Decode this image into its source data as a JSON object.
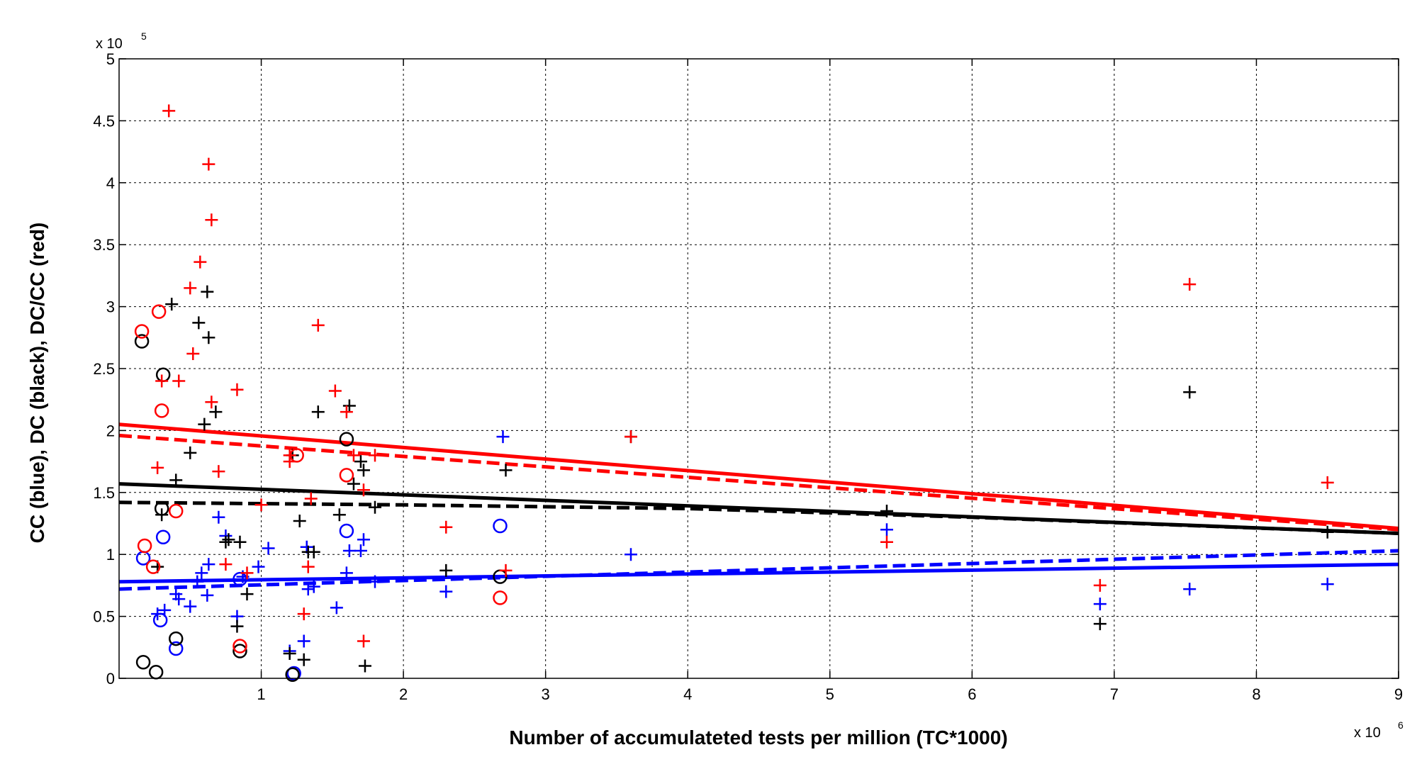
{
  "chart_data": {
    "type": "scatter",
    "xlabel": "Number of accumulateted tests per million (TC*1000)",
    "ylabel": "CC (blue), DC (black), DC/CC (red)",
    "x_multiplier": {
      "base": "x 10",
      "exp": "6"
    },
    "y_multiplier": {
      "base": "x 10",
      "exp": "5"
    },
    "xlim": [
      0,
      9
    ],
    "ylim": [
      0,
      5
    ],
    "x_ticks": [
      "1",
      "2",
      "3",
      "4",
      "5",
      "6",
      "7",
      "8",
      "9"
    ],
    "y_ticks": [
      "0",
      "0.5",
      "1",
      "1.5",
      "2",
      "2.5",
      "3",
      "3.5",
      "4",
      "4.5",
      "5"
    ],
    "grid": true,
    "colors": {
      "blue": "#0000ff",
      "black": "#000000",
      "red": "#ff0000"
    },
    "series": [
      {
        "color": "blue",
        "marker": "plus",
        "points": [
          [
            0.27,
            0.52
          ],
          [
            0.32,
            0.55
          ],
          [
            0.4,
            0.68
          ],
          [
            0.42,
            0.64
          ],
          [
            0.5,
            0.58
          ],
          [
            0.55,
            0.78
          ],
          [
            0.58,
            0.85
          ],
          [
            0.62,
            0.67
          ],
          [
            0.63,
            0.92
          ],
          [
            0.7,
            1.3
          ],
          [
            0.75,
            1.15
          ],
          [
            0.83,
            0.5
          ],
          [
            0.87,
            0.82
          ],
          [
            0.98,
            0.9
          ],
          [
            1.05,
            1.05
          ],
          [
            1.2,
            0.22
          ],
          [
            1.3,
            0.3
          ],
          [
            1.32,
            1.06
          ],
          [
            1.33,
            0.72
          ],
          [
            1.37,
            0.74
          ],
          [
            1.53,
            0.57
          ],
          [
            1.6,
            0.85
          ],
          [
            1.62,
            1.03
          ],
          [
            1.7,
            1.03
          ],
          [
            1.72,
            1.12
          ],
          [
            1.8,
            0.78
          ],
          [
            2.3,
            0.7
          ],
          [
            2.7,
            1.95
          ],
          [
            3.6,
            1.0
          ],
          [
            5.4,
            1.2
          ],
          [
            6.9,
            0.6
          ],
          [
            7.53,
            0.72
          ],
          [
            8.5,
            0.76
          ]
        ]
      },
      {
        "color": "blue",
        "marker": "circle",
        "points": [
          [
            0.17,
            0.97
          ],
          [
            0.29,
            0.47
          ],
          [
            0.31,
            1.14
          ],
          [
            0.4,
            0.24
          ],
          [
            0.85,
            0.8
          ],
          [
            1.23,
            0.04
          ],
          [
            1.6,
            1.19
          ],
          [
            2.68,
            1.23
          ]
        ]
      },
      {
        "color": "black",
        "marker": "plus",
        "points": [
          [
            0.27,
            0.9
          ],
          [
            0.3,
            1.32
          ],
          [
            0.37,
            3.02
          ],
          [
            0.4,
            1.6
          ],
          [
            0.5,
            1.82
          ],
          [
            0.56,
            2.87
          ],
          [
            0.6,
            2.05
          ],
          [
            0.62,
            3.12
          ],
          [
            0.63,
            2.75
          ],
          [
            0.68,
            2.15
          ],
          [
            0.75,
            1.1
          ],
          [
            0.77,
            1.12
          ],
          [
            0.83,
            0.42
          ],
          [
            0.85,
            1.1
          ],
          [
            0.9,
            0.68
          ],
          [
            1.2,
            0.2
          ],
          [
            1.22,
            1.8
          ],
          [
            1.27,
            1.27
          ],
          [
            1.3,
            0.15
          ],
          [
            1.33,
            1.02
          ],
          [
            1.37,
            1.02
          ],
          [
            1.4,
            2.15
          ],
          [
            1.55,
            1.32
          ],
          [
            1.62,
            2.2
          ],
          [
            1.65,
            1.57
          ],
          [
            1.7,
            1.75
          ],
          [
            1.72,
            1.68
          ],
          [
            1.73,
            0.1
          ],
          [
            1.8,
            1.38
          ],
          [
            2.3,
            0.87
          ],
          [
            2.72,
            1.68
          ],
          [
            3.6,
            1.95
          ],
          [
            5.4,
            1.35
          ],
          [
            6.9,
            0.44
          ],
          [
            7.53,
            2.31
          ],
          [
            8.5,
            1.18
          ]
        ]
      },
      {
        "color": "black",
        "marker": "circle",
        "points": [
          [
            0.16,
            2.72
          ],
          [
            0.17,
            0.13
          ],
          [
            0.26,
            0.05
          ],
          [
            0.3,
            1.37
          ],
          [
            0.31,
            2.45
          ],
          [
            0.4,
            0.32
          ],
          [
            0.85,
            0.22
          ],
          [
            1.22,
            0.03
          ],
          [
            1.6,
            1.93
          ],
          [
            2.68,
            0.82
          ]
        ]
      },
      {
        "color": "red",
        "marker": "plus",
        "points": [
          [
            0.27,
            1.7
          ],
          [
            0.3,
            2.4
          ],
          [
            0.35,
            4.58
          ],
          [
            0.42,
            2.4
          ],
          [
            0.5,
            3.15
          ],
          [
            0.52,
            2.62
          ],
          [
            0.57,
            3.36
          ],
          [
            0.63,
            4.15
          ],
          [
            0.65,
            2.23
          ],
          [
            0.65,
            3.7
          ],
          [
            0.7,
            1.67
          ],
          [
            0.75,
            0.92
          ],
          [
            0.83,
            2.33
          ],
          [
            0.9,
            0.85
          ],
          [
            1.0,
            1.4
          ],
          [
            1.2,
            1.8
          ],
          [
            1.2,
            1.75
          ],
          [
            1.3,
            0.52
          ],
          [
            1.33,
            0.9
          ],
          [
            1.35,
            1.45
          ],
          [
            1.4,
            2.85
          ],
          [
            1.52,
            2.32
          ],
          [
            1.6,
            2.15
          ],
          [
            1.65,
            1.8
          ],
          [
            1.72,
            0.3
          ],
          [
            1.72,
            1.52
          ],
          [
            1.8,
            1.8
          ],
          [
            2.3,
            1.22
          ],
          [
            2.72,
            0.87
          ],
          [
            3.6,
            1.95
          ],
          [
            5.4,
            1.1
          ],
          [
            6.9,
            0.75
          ],
          [
            7.53,
            3.18
          ],
          [
            8.5,
            1.58
          ]
        ]
      },
      {
        "color": "red",
        "marker": "circle",
        "points": [
          [
            0.16,
            2.8
          ],
          [
            0.18,
            1.07
          ],
          [
            0.24,
            0.9
          ],
          [
            0.28,
            2.96
          ],
          [
            0.3,
            2.16
          ],
          [
            0.4,
            1.35
          ],
          [
            0.85,
            0.26
          ],
          [
            1.25,
            1.8
          ],
          [
            1.6,
            1.64
          ],
          [
            2.68,
            0.65
          ]
        ]
      }
    ],
    "fit_lines": [
      {
        "color": "blue",
        "style": "solid",
        "points": [
          [
            0,
            0.78
          ],
          [
            9,
            0.92
          ]
        ]
      },
      {
        "color": "blue",
        "style": "dashed",
        "points": [
          [
            0,
            0.72
          ],
          [
            9,
            1.03
          ]
        ]
      },
      {
        "color": "black",
        "style": "solid",
        "points": [
          [
            0,
            1.57
          ],
          [
            9,
            1.17
          ]
        ]
      },
      {
        "color": "black",
        "style": "dashed",
        "points": [
          [
            0,
            1.42
          ],
          [
            2,
            1.4
          ],
          [
            4,
            1.37
          ],
          [
            6,
            1.3
          ],
          [
            9,
            1.17
          ]
        ]
      },
      {
        "color": "red",
        "style": "solid",
        "points": [
          [
            0,
            2.05
          ],
          [
            9,
            1.21
          ]
        ]
      },
      {
        "color": "red",
        "style": "dashed",
        "points": [
          [
            0,
            1.96
          ],
          [
            9,
            1.2
          ]
        ]
      }
    ]
  }
}
